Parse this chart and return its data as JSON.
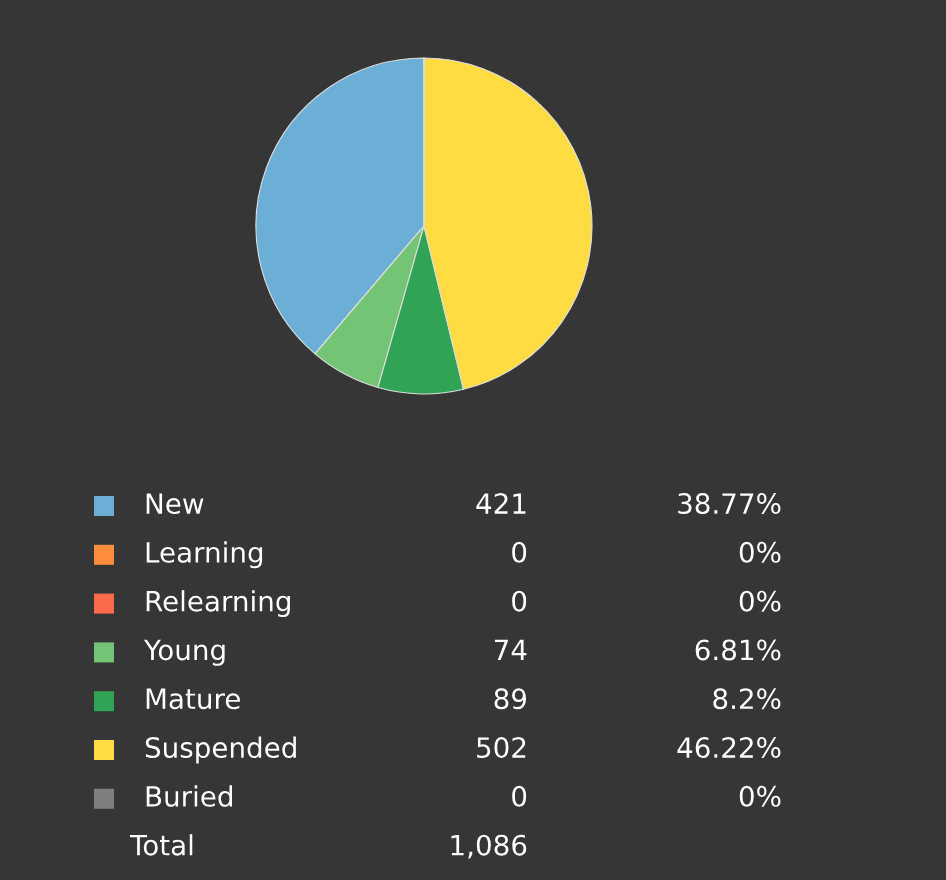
{
  "chart_data": {
    "type": "pie",
    "categories": [
      "New",
      "Learning",
      "Relearning",
      "Young",
      "Mature",
      "Suspended",
      "Buried"
    ],
    "values": [
      38.77,
      0,
      0,
      6.81,
      8.2,
      46.22,
      0
    ],
    "colors": [
      "#6baed6",
      "#fd8d3c",
      "#fb6a4a",
      "#74c476",
      "#31a354",
      "#ffdc41",
      "#7f7f7f"
    ],
    "value_labels": [
      "38.77%",
      "0%",
      "0%",
      "6.81%",
      "8.2%",
      "46.22%",
      "0%"
    ],
    "legend": "bottom",
    "annotations": [
      "421",
      "0",
      "0",
      "74",
      "89",
      "502",
      "0",
      "Total",
      "1,086"
    ]
  }
}
